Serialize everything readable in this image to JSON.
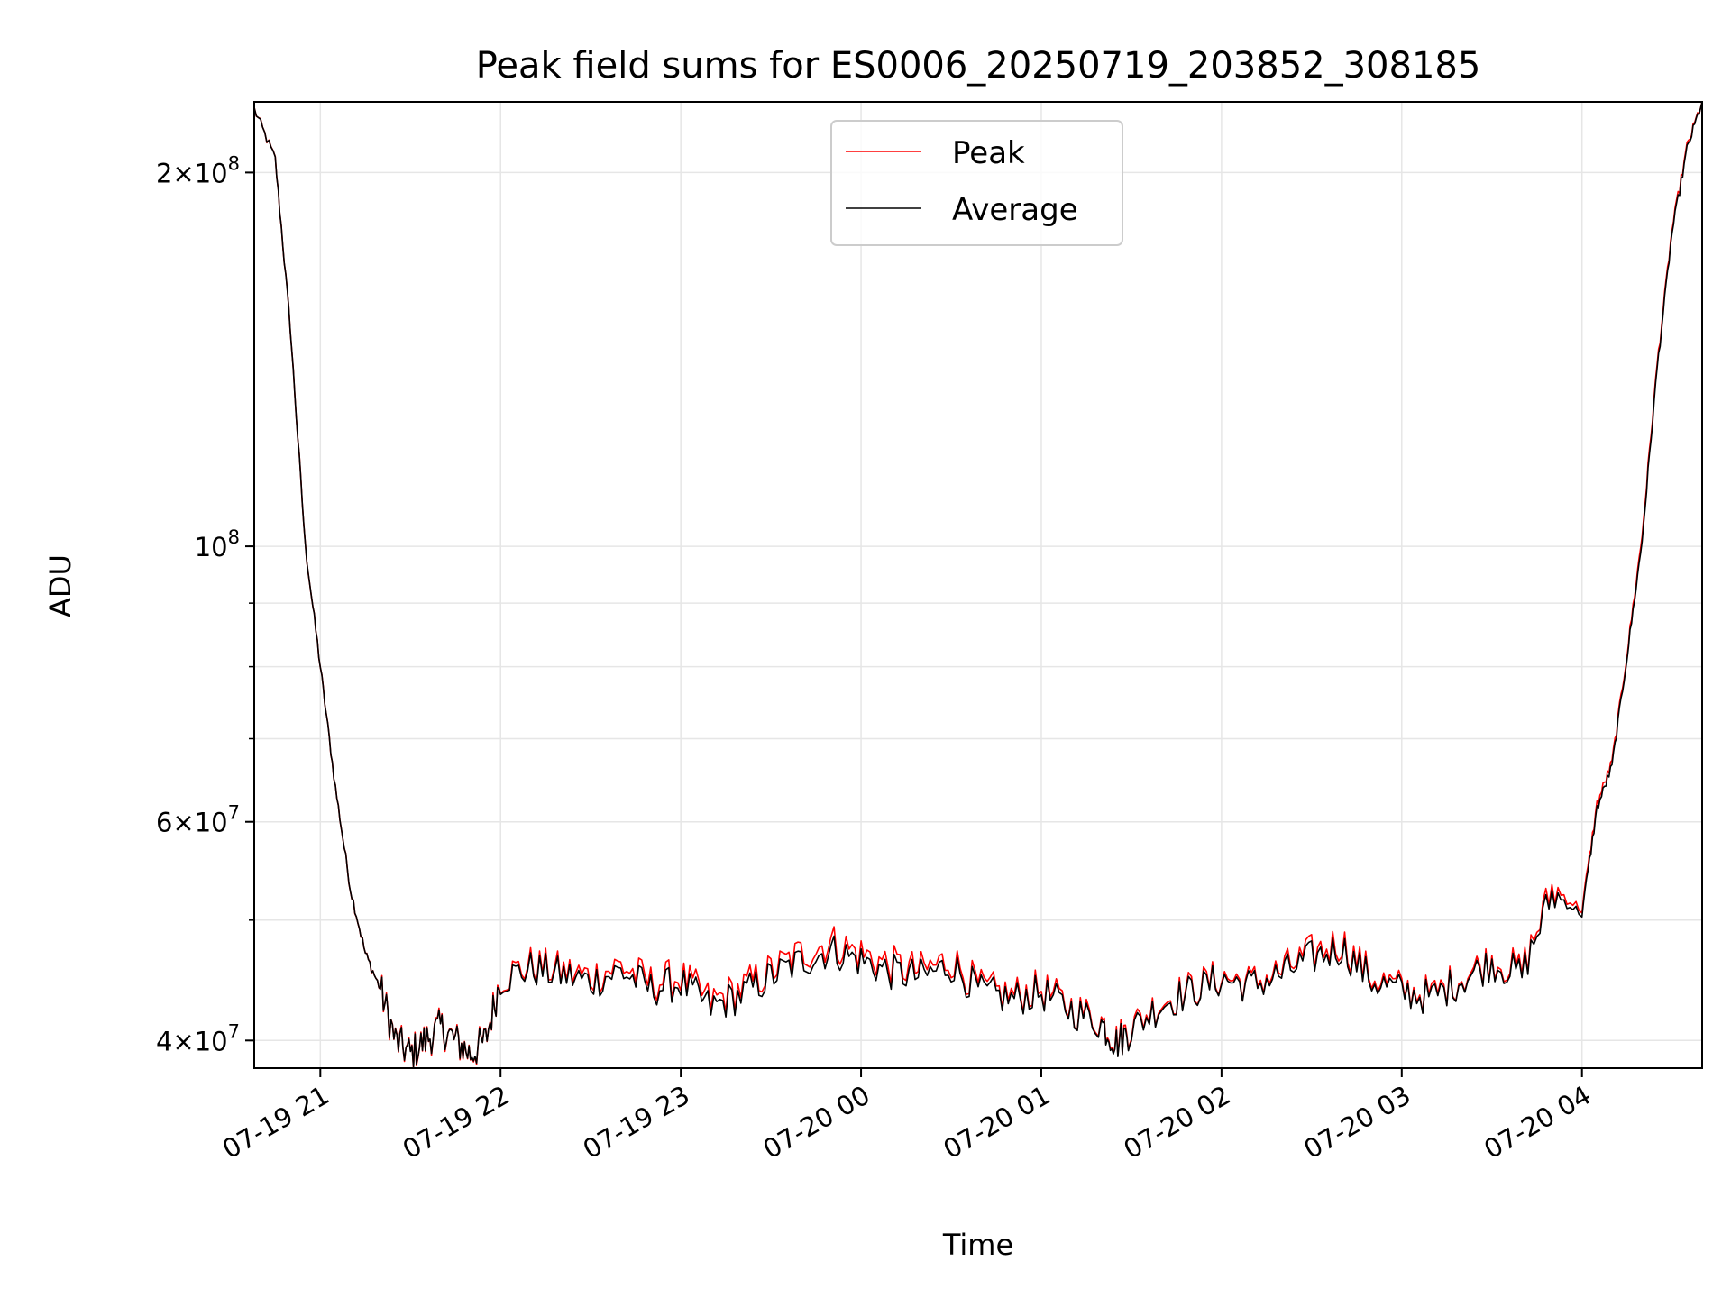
{
  "chart_data": {
    "type": "line",
    "title": "Peak field sums for ES0006_20250719_203852_308185",
    "xlabel": "Time",
    "ylabel": "ADU",
    "yscale": "log",
    "xlim": [
      "2025-07-19 20:38",
      "2025-07-20 04:40"
    ],
    "ylim": [
      38000000,
      228000000
    ],
    "grid": true,
    "legend_position": "upper-center",
    "x_ticks": [
      "07-19 21",
      "07-19 22",
      "07-19 23",
      "07-20 00",
      "07-20 01",
      "07-20 02",
      "07-20 03",
      "07-20 04"
    ],
    "y_ticks": [
      {
        "value": 40000000,
        "label_mantissa": "4",
        "label_exp": "7"
      },
      {
        "value": 60000000,
        "label_mantissa": "6",
        "label_exp": "7"
      },
      {
        "value": 100000000,
        "label_mantissa": "10",
        "label_exp": "8"
      },
      {
        "value": 200000000,
        "label_mantissa": "2",
        "label_exp": "8"
      }
    ],
    "x": [
      "2025-07-19 20:38",
      "2025-07-19 20:45",
      "2025-07-19 20:50",
      "2025-07-19 20:55",
      "2025-07-19 21:00",
      "2025-07-19 21:05",
      "2025-07-19 21:10",
      "2025-07-19 21:15",
      "2025-07-19 21:20",
      "2025-07-19 21:25",
      "2025-07-19 21:30",
      "2025-07-19 21:35",
      "2025-07-19 21:40",
      "2025-07-19 21:45",
      "2025-07-19 21:50",
      "2025-07-19 21:55",
      "2025-07-19 22:00",
      "2025-07-19 22:10",
      "2025-07-19 22:20",
      "2025-07-19 22:30",
      "2025-07-19 22:40",
      "2025-07-19 22:50",
      "2025-07-19 23:00",
      "2025-07-19 23:10",
      "2025-07-19 23:20",
      "2025-07-19 23:30",
      "2025-07-19 23:40",
      "2025-07-19 23:50",
      "2025-07-20 00:00",
      "2025-07-20 00:10",
      "2025-07-20 00:20",
      "2025-07-20 00:30",
      "2025-07-20 00:40",
      "2025-07-20 00:50",
      "2025-07-20 01:00",
      "2025-07-20 01:10",
      "2025-07-20 01:20",
      "2025-07-20 01:25",
      "2025-07-20 01:30",
      "2025-07-20 01:40",
      "2025-07-20 01:50",
      "2025-07-20 02:00",
      "2025-07-20 02:10",
      "2025-07-20 02:20",
      "2025-07-20 02:30",
      "2025-07-20 02:40",
      "2025-07-20 02:50",
      "2025-07-20 03:00",
      "2025-07-20 03:10",
      "2025-07-20 03:20",
      "2025-07-20 03:30",
      "2025-07-20 03:40",
      "2025-07-20 03:50",
      "2025-07-20 04:00",
      "2025-07-20 04:05",
      "2025-07-20 04:10",
      "2025-07-20 04:15",
      "2025-07-20 04:20",
      "2025-07-20 04:25",
      "2025-07-20 04:30",
      "2025-07-20 04:35",
      "2025-07-20 04:40"
    ],
    "series": [
      {
        "name": "Peak",
        "color": "#ff0000",
        "values": [
          225000000,
          205000000,
          150000000,
          100000000,
          80000000,
          64000000,
          53000000,
          47000000,
          44000000,
          40000000,
          39000000,
          40000000,
          41000000,
          40000000,
          39000000,
          40000000,
          45000000,
          46000000,
          45500000,
          45000000,
          46000000,
          44500000,
          45000000,
          43000000,
          44000000,
          45500000,
          47000000,
          48000000,
          47000000,
          46000000,
          45500000,
          46500000,
          44000000,
          43500000,
          44000000,
          42500000,
          41500000,
          40000000,
          41000000,
          43000000,
          44000000,
          45000000,
          44500000,
          45500000,
          47000000,
          48000000,
          45000000,
          44000000,
          43500000,
          45000000,
          46500000,
          45500000,
          53000000,
          51000000,
          62000000,
          67000000,
          82000000,
          102000000,
          140000000,
          180000000,
          210000000,
          228000000
        ]
      },
      {
        "name": "Average",
        "color": "#000000",
        "values": [
          225000000,
          205000000,
          150000000,
          100000000,
          80000000,
          64000000,
          53000000,
          47000000,
          44000000,
          40000000,
          39000000,
          40000000,
          41000000,
          40000000,
          39000000,
          40000000,
          44800000,
          45700000,
          45200000,
          44600000,
          45500000,
          44000000,
          44500000,
          42500000,
          43500000,
          45000000,
          46300000,
          47300000,
          46400000,
          45400000,
          45000000,
          46000000,
          43700000,
          43200000,
          43700000,
          42300000,
          41300000,
          39800000,
          40800000,
          42800000,
          43800000,
          44800000,
          44300000,
          45200000,
          46600000,
          47500000,
          44700000,
          43800000,
          43300000,
          44800000,
          46200000,
          45200000,
          52500000,
          50600000,
          61500000,
          66500000,
          81500000,
          101000000,
          139000000,
          179000000,
          209000000,
          228000000
        ]
      }
    ]
  }
}
